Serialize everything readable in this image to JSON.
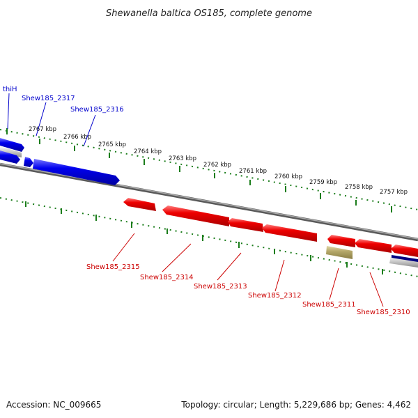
{
  "title": "Shewanella baltica OS185, complete genome",
  "footer": {
    "accession": "Accession: NC_009665",
    "topology": "Topology: circular; Length: 5,229,686 bp; Genes: 4,462"
  },
  "colors": {
    "forward_gene": "#0000ee",
    "reverse_gene": "#ee0000",
    "forward_label": "#0000cc",
    "reverse_label": "#cc0000",
    "tick": "#1b7d1b",
    "backbone": "#888888",
    "other_feature": "#b5a86a",
    "dark_feature": "#000080"
  },
  "kbp_ticks": [
    "2767 kbp",
    "2766 kbp",
    "2765 kbp",
    "2764 kbp",
    "2763 kbp",
    "2762 kbp",
    "2761 kbp",
    "2760 kbp",
    "2759 kbp",
    "2758 kbp",
    "2757 kbp"
  ],
  "forward_genes": [
    "thiH",
    "Shew185_2317",
    "Shew185_2316"
  ],
  "reverse_genes": [
    "Shew185_2315",
    "Shew185_2314",
    "Shew185_2313",
    "Shew185_2312",
    "Shew185_2311",
    "Shew185_2310"
  ]
}
